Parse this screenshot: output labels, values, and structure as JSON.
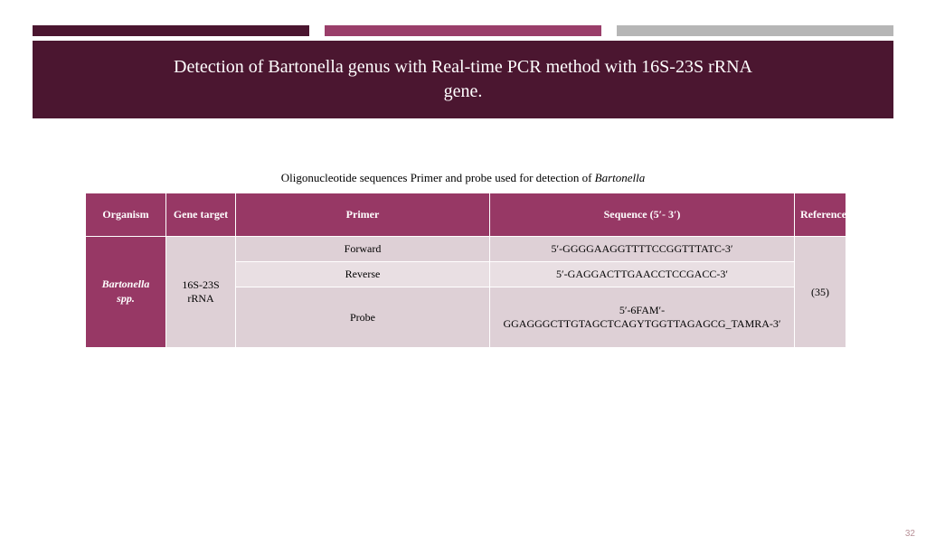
{
  "colors": {
    "dark_maroon": "#4b1630",
    "magenta": "#9a3e6a",
    "grey": "#b6b6b6",
    "header_row": "#973865",
    "cell_light": "#ded0d6",
    "cell_lighter": "#e9dfe3",
    "row_header": "#973865"
  },
  "stripe": {
    "seg1_width": 306,
    "seg2_width": 306,
    "seg3_width": 306
  },
  "header": {
    "title": "Detection of Bartonella genus with Real-time PCR method with 16S-23S rRNA gene."
  },
  "caption": {
    "prefix": "Oligonucleotide sequences Primer and probe used for detection of ",
    "italic": "Bartonella"
  },
  "table": {
    "headers": {
      "organism": "Organism",
      "gene": "Gene target",
      "primer": "Primer",
      "sequence": "Sequence (5′- 3′)",
      "reference": "Reference"
    },
    "organism": "Bartonella spp.",
    "gene": "16S-23S rRNA",
    "reference": "(35)",
    "rows": [
      {
        "primer": "Forward",
        "sequence": "5′-GGGGAAGGTTTTCCGGTTTATC-3′"
      },
      {
        "primer": "Reverse",
        "sequence": "5′-GAGGACTTGAACCTCCGACC-3′"
      },
      {
        "primer": "Probe",
        "sequence": "5′-6FAM′-GGAGGGCTTGTAGCTCAGYTGGTTAGAGCG_TAMRA-3′"
      }
    ]
  },
  "page_number": "32"
}
